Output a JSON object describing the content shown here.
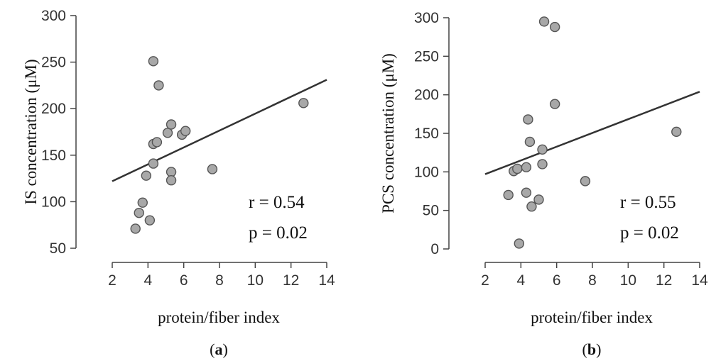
{
  "chart_data": [
    {
      "type": "scatter",
      "panel_label": "(a)",
      "xlabel": "protein/fiber index",
      "ylabel": "IS concentration (μM)",
      "xlim": [
        2,
        14
      ],
      "ylim": [
        50,
        300
      ],
      "xticks": [
        "2",
        "4",
        "6",
        "8",
        "10",
        "12",
        "14"
      ],
      "yticks": [
        "50",
        "100",
        "150",
        "200",
        "250",
        "300"
      ],
      "points": [
        {
          "x": 3.3,
          "y": 71
        },
        {
          "x": 3.5,
          "y": 88
        },
        {
          "x": 3.7,
          "y": 99
        },
        {
          "x": 4.1,
          "y": 80
        },
        {
          "x": 3.9,
          "y": 128
        },
        {
          "x": 4.3,
          "y": 141
        },
        {
          "x": 4.3,
          "y": 162
        },
        {
          "x": 4.5,
          "y": 164
        },
        {
          "x": 4.3,
          "y": 251
        },
        {
          "x": 4.6,
          "y": 225
        },
        {
          "x": 5.1,
          "y": 174
        },
        {
          "x": 5.3,
          "y": 183
        },
        {
          "x": 5.3,
          "y": 132
        },
        {
          "x": 5.3,
          "y": 123
        },
        {
          "x": 5.9,
          "y": 172
        },
        {
          "x": 6.1,
          "y": 176
        },
        {
          "x": 7.6,
          "y": 135
        },
        {
          "x": 12.7,
          "y": 206
        }
      ],
      "trendline": {
        "x": [
          2,
          14
        ],
        "y": [
          122,
          231
        ]
      },
      "annotations": [
        "r = 0.54",
        "p = 0.02"
      ]
    },
    {
      "type": "scatter",
      "panel_label": "(b)",
      "xlabel": "protein/fiber index",
      "ylabel": "PCS concentration (μM)",
      "xlim": [
        2,
        14
      ],
      "ylim": [
        0,
        300
      ],
      "xticks": [
        "2",
        "4",
        "6",
        "8",
        "10",
        "12",
        "14"
      ],
      "yticks": [
        "0",
        "50",
        "100",
        "150",
        "200",
        "250",
        "300"
      ],
      "points": [
        {
          "x": 3.3,
          "y": 70
        },
        {
          "x": 3.6,
          "y": 101
        },
        {
          "x": 3.8,
          "y": 104
        },
        {
          "x": 3.9,
          "y": 7
        },
        {
          "x": 4.3,
          "y": 106
        },
        {
          "x": 4.3,
          "y": 73
        },
        {
          "x": 4.4,
          "y": 168
        },
        {
          "x": 4.5,
          "y": 139
        },
        {
          "x": 4.6,
          "y": 55
        },
        {
          "x": 5.0,
          "y": 64
        },
        {
          "x": 5.2,
          "y": 110
        },
        {
          "x": 5.2,
          "y": 129
        },
        {
          "x": 5.3,
          "y": 295
        },
        {
          "x": 5.9,
          "y": 288
        },
        {
          "x": 5.9,
          "y": 188
        },
        {
          "x": 7.6,
          "y": 88
        },
        {
          "x": 12.7,
          "y": 152
        }
      ],
      "trendline": {
        "x": [
          2,
          14
        ],
        "y": [
          97,
          204
        ]
      },
      "annotations": [
        "r = 0.55",
        "p = 0.02"
      ]
    }
  ],
  "colors": {
    "point_fill": "#a8a8a8",
    "point_stroke": "#555555",
    "trendline": "#333333",
    "axis": "#444444"
  }
}
